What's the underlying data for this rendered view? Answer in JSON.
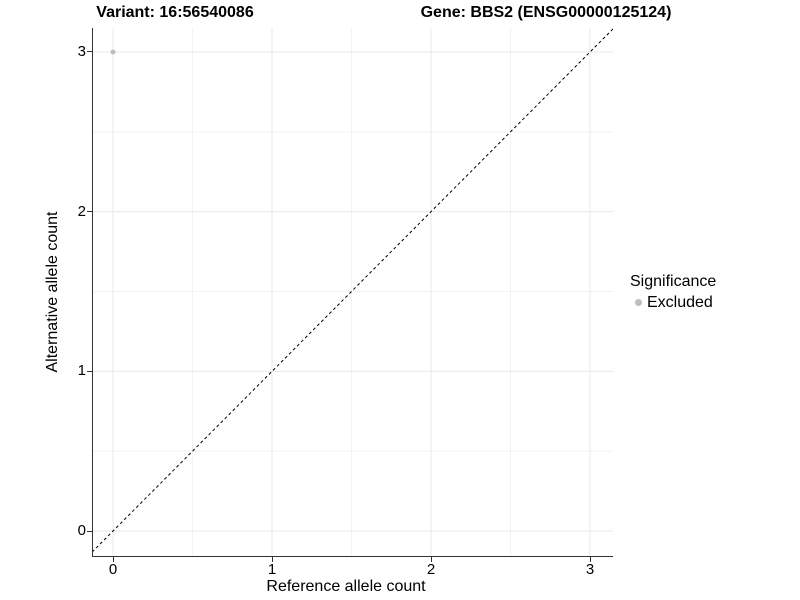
{
  "header": {
    "variant_title": "Variant: 16:56540086",
    "gene_title": "Gene: BBS2 (ENSG00000125124)"
  },
  "chart_data": {
    "type": "scatter",
    "xlabel": "Reference allele count",
    "ylabel": "Alternative allele count",
    "x_ticks": [
      0,
      1,
      2,
      3
    ],
    "y_ticks": [
      0,
      1,
      2,
      3
    ],
    "xlim": [
      -0.13,
      3.15
    ],
    "ylim": [
      -0.16,
      3.15
    ],
    "grid": {
      "major": true,
      "minor": true,
      "major_color": "#e8e8e8",
      "minor_color": "#f2f2f2"
    },
    "axis_line_color": "#333333",
    "legend": {
      "title": "Significance",
      "position": "right",
      "entries": [
        "Excluded"
      ]
    },
    "series": [
      {
        "name": "Excluded",
        "color": "#bebebe",
        "points": [
          {
            "x": 0,
            "y": 3
          }
        ]
      }
    ],
    "reference_line": {
      "type": "identity",
      "slope": 1,
      "intercept": 0,
      "style": "dashed",
      "color": "#000000"
    }
  }
}
